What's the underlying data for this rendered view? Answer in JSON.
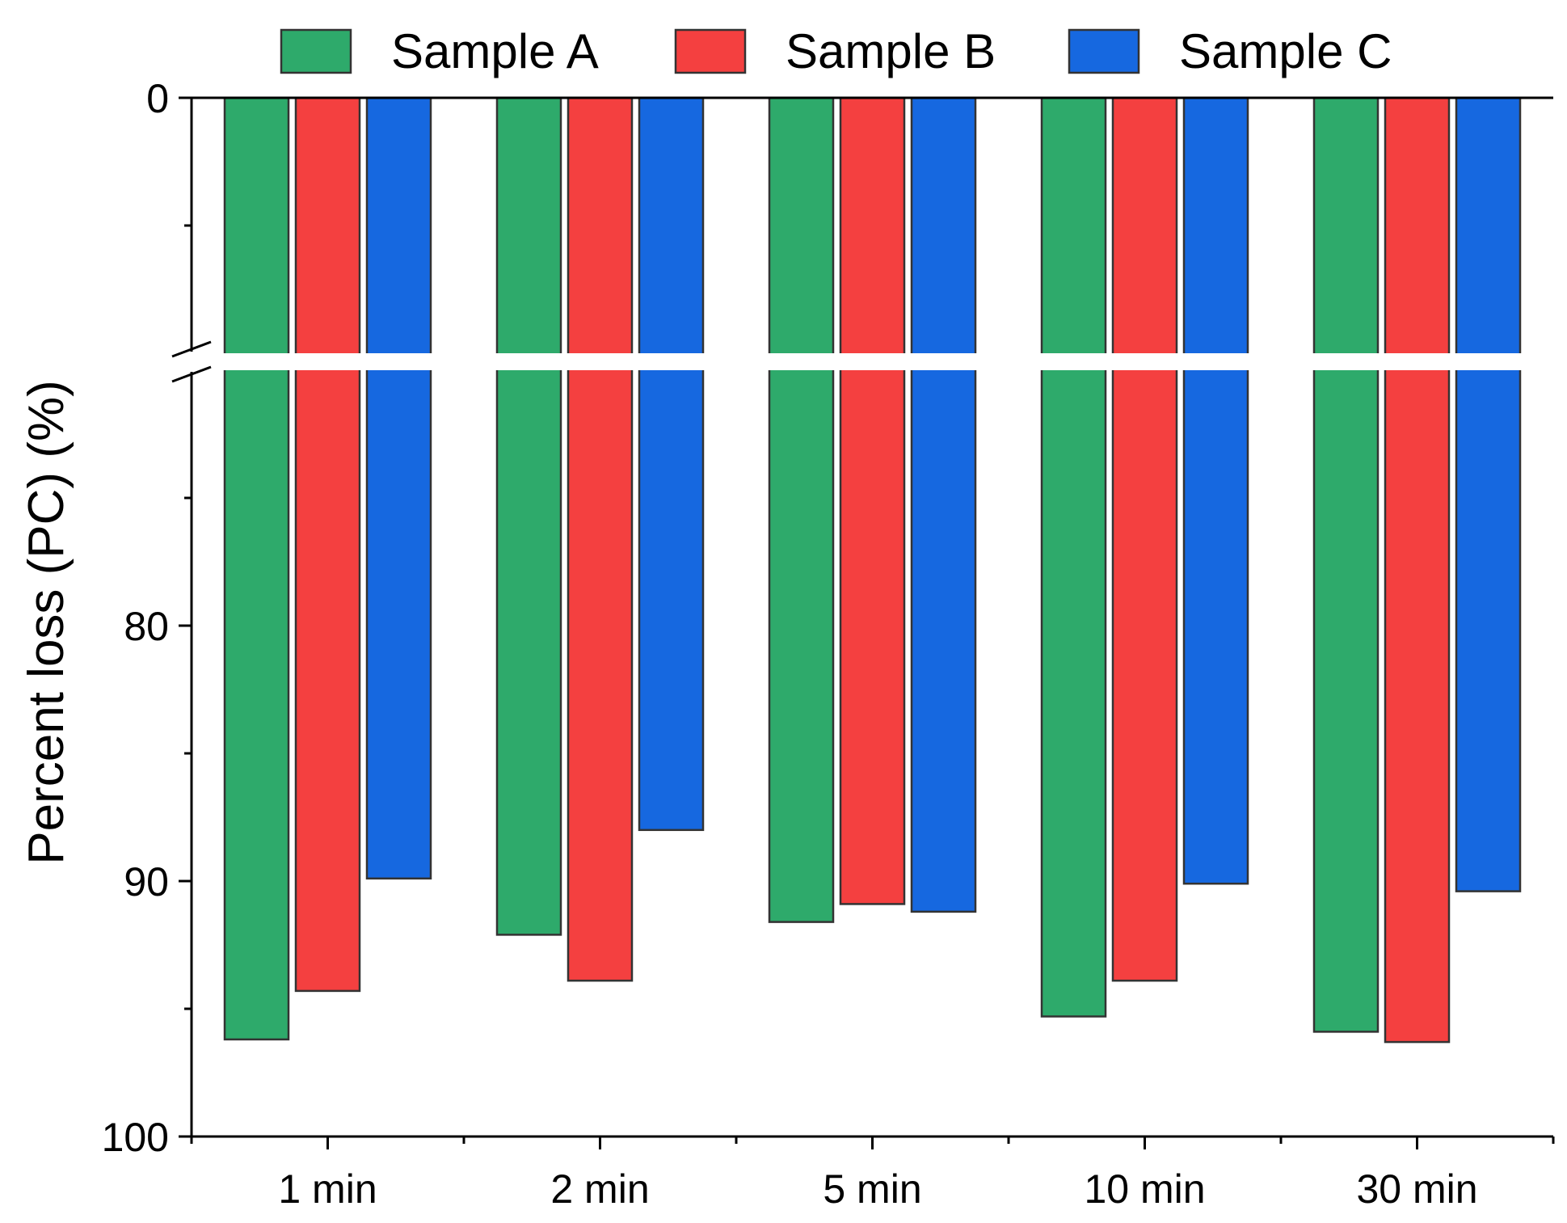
{
  "chart_data": {
    "type": "bar",
    "orientation": "vertical-inverted",
    "categories": [
      "1 min",
      "2 min",
      "5 min",
      "10 min",
      "30 min"
    ],
    "series": [
      {
        "name": "Sample A",
        "color": "#2eaa6b",
        "values": [
          96.2,
          92.1,
          91.6,
          95.3,
          95.9
        ]
      },
      {
        "name": "Sample B",
        "color": "#f44040",
        "values": [
          94.3,
          93.9,
          90.9,
          93.9,
          96.3
        ]
      },
      {
        "name": "Sample C",
        "color": "#1668e0",
        "values": [
          89.9,
          88.0,
          91.2,
          90.1,
          90.4
        ]
      }
    ],
    "xlabel": "",
    "ylabel": "Percent loss (PC) (%)",
    "y_axis_break": [
      0,
      70
    ],
    "y_upper_segment": [
      0,
      0
    ],
    "y_lower_segment": [
      70,
      100
    ],
    "ylim": [
      0,
      100
    ],
    "y_ticks": [
      "0",
      "80",
      "90",
      "100"
    ],
    "y_tick_values": [
      0,
      80,
      90,
      100
    ],
    "legend_position": "top",
    "grid": false
  }
}
